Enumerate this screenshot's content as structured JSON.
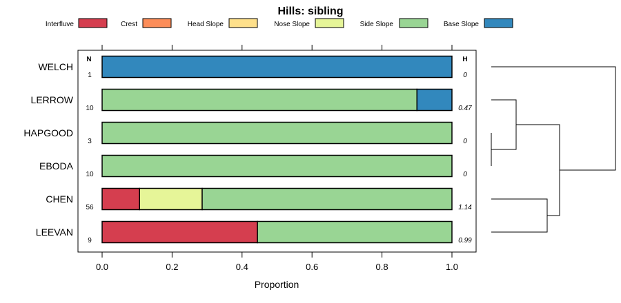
{
  "chart_data": {
    "type": "bar",
    "stacked": true,
    "orientation": "horizontal",
    "title": "Hills: sibling",
    "xlabel": "Proportion",
    "xlim": [
      0,
      1
    ],
    "xticks": [
      "0.0",
      "0.2",
      "0.4",
      "0.6",
      "0.8",
      "1.0"
    ],
    "n_header": "N",
    "h_header": "H",
    "legend": [
      {
        "name": "Interfluve",
        "color": "#d53e4f"
      },
      {
        "name": "Crest",
        "color": "#fc8d59"
      },
      {
        "name": "Head Slope",
        "color": "#fee08b"
      },
      {
        "name": "Nose Slope",
        "color": "#e6f598"
      },
      {
        "name": "Side Slope",
        "color": "#99d594"
      },
      {
        "name": "Base Slope",
        "color": "#3288bd"
      }
    ],
    "categories": [
      "WELCH",
      "LERROW",
      "HAPGOOD",
      "EBODA",
      "CHEN",
      "LEEVAN"
    ],
    "n": [
      "1",
      "10",
      "3",
      "10",
      "56",
      "9"
    ],
    "h": [
      "0",
      "0.47",
      "0",
      "0",
      "1.14",
      "0.99"
    ],
    "series": [
      {
        "name": "Interfluve",
        "values": [
          0,
          0,
          0,
          0,
          0.107,
          0.444
        ]
      },
      {
        "name": "Crest",
        "values": [
          0,
          0,
          0,
          0,
          0,
          0
        ]
      },
      {
        "name": "Head Slope",
        "values": [
          0,
          0,
          0,
          0,
          0,
          0
        ]
      },
      {
        "name": "Nose Slope",
        "values": [
          0,
          0,
          0,
          0,
          0.179,
          0
        ]
      },
      {
        "name": "Side Slope",
        "values": [
          0,
          0.9,
          1,
          1,
          0.714,
          0.556
        ]
      },
      {
        "name": "Base Slope",
        "values": [
          1,
          0.1,
          0,
          0,
          0,
          0
        ]
      }
    ],
    "dendrogram": {
      "leaves": [
        "WELCH",
        "LERROW",
        "HAPGOOD",
        "EBODA",
        "CHEN",
        "LEEVAN"
      ],
      "merges": [
        {
          "left": "HAPGOOD",
          "right": "EBODA",
          "height": 0.0
        },
        {
          "left": "LERROW",
          "right": "HAPGOOD+EBODA",
          "height": 0.2
        },
        {
          "left": "CHEN",
          "right": "LEEVAN",
          "height": 0.45
        },
        {
          "left": "LERROW+HAPGOOD+EBODA",
          "right": "CHEN+LEEVAN",
          "height": 0.55
        },
        {
          "left": "WELCH",
          "right": "rest",
          "height": 1.0
        }
      ]
    }
  }
}
